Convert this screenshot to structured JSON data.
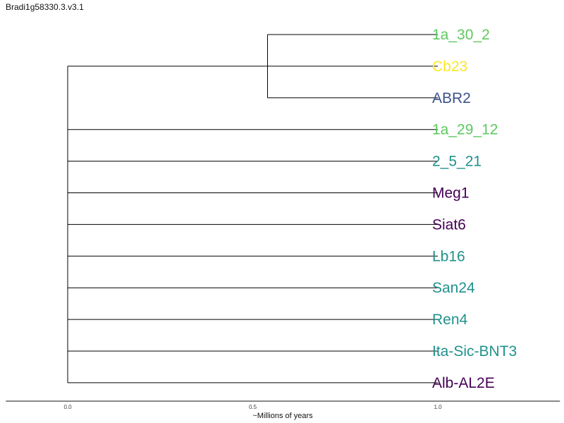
{
  "title": "Bradi1g58330.3.v3.1",
  "axis": {
    "label": "~Millions of years",
    "ticks": [
      {
        "value": 0.0,
        "label": "0.0"
      },
      {
        "value": 0.5,
        "label": "0.5"
      },
      {
        "value": 1.0,
        "label": "1.0"
      }
    ],
    "range": [
      -0.167,
      1.33
    ]
  },
  "tree": {
    "root_time": 0.0,
    "clades": [
      {
        "node_time": 0.54,
        "leaves": [
          {
            "name": "1a_30_2",
            "color": "#5ec962"
          },
          {
            "name": "Cb23",
            "color": "#fde725"
          },
          {
            "name": "ABR2",
            "color": "#3b528b"
          }
        ]
      }
    ],
    "leaves": [
      {
        "name": "1a_29_12",
        "color": "#5ec962"
      },
      {
        "name": "2_5_21",
        "color": "#21918c"
      },
      {
        "name": "Meg1",
        "color": "#440154"
      },
      {
        "name": "Siat6",
        "color": "#440154"
      },
      {
        "name": "Lb16",
        "color": "#21918c"
      },
      {
        "name": "San24",
        "color": "#21918c"
      },
      {
        "name": "Ren4",
        "color": "#21918c"
      },
      {
        "name": "Ita-Sic-BNT3",
        "color": "#21918c"
      },
      {
        "name": "Alb-AL2E",
        "color": "#440154"
      }
    ],
    "tip_time": 1.0
  }
}
